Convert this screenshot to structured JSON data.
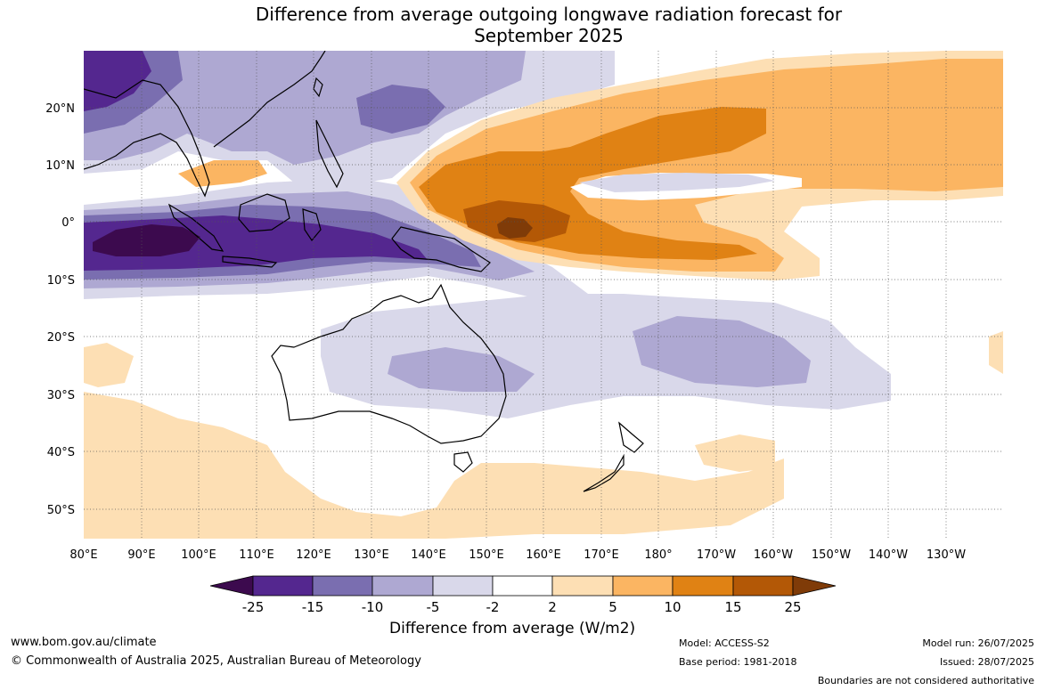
{
  "title": {
    "line1": "Difference from average outgoing longwave radiation forecast for",
    "line2": "September 2025"
  },
  "map": {
    "lat_labels": [
      "20°N",
      "10°N",
      "0°",
      "10°S",
      "20°S",
      "30°S",
      "40°S",
      "50°S"
    ],
    "lon_labels": [
      "80°E",
      "90°E",
      "100°E",
      "110°E",
      "120°E",
      "130°E",
      "140°E",
      "150°E",
      "160°E",
      "170°E",
      "180°",
      "170°W",
      "160°W",
      "150°W",
      "140°W",
      "130°W"
    ]
  },
  "colorbar": {
    "title": "Difference from average (W/m2)",
    "ticks": [
      "-25",
      "-15",
      "-10",
      "-5",
      "-2",
      "2",
      "5",
      "10",
      "15",
      "25"
    ],
    "colors": [
      "#3c0a4e",
      "#54278f",
      "#7a6eb0",
      "#aea8d2",
      "#d9d8ea",
      "#ffffff",
      "#fddfb4",
      "#fbb562",
      "#e08214",
      "#b35806",
      "#7f3b08"
    ]
  },
  "footer": {
    "url": "www.bom.gov.au/climate",
    "copyright": "© Commonwealth of Australia 2025, Australian Bureau of Meteorology",
    "model": "Model: ACCESS-S2",
    "base_period": "Base period: 1981-2018",
    "model_run": "Model run: 26/07/2025",
    "issued": "Issued: 28/07/2025",
    "disclaimer": "Boundaries are not considered authoritative"
  }
}
